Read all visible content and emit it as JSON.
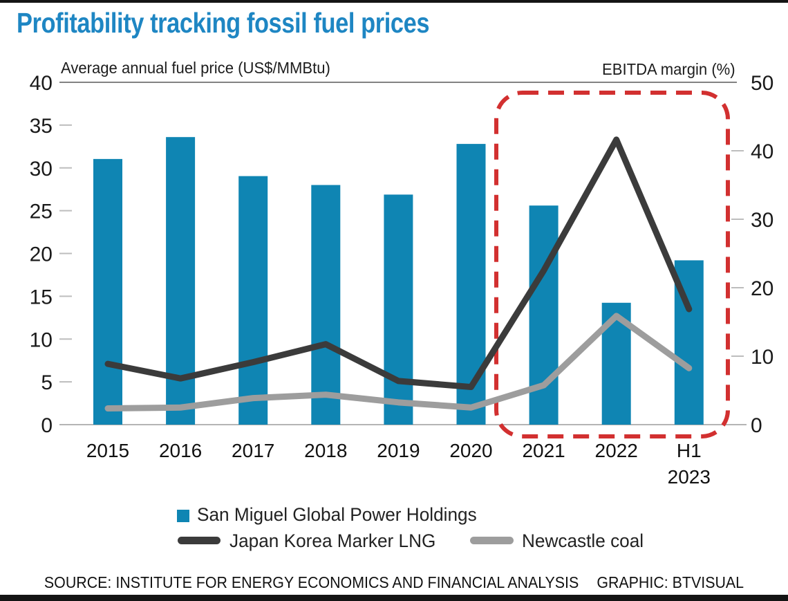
{
  "title": "Profitability tracking fossil fuel prices",
  "colors": {
    "title_accent": "#1e86c3",
    "bar": "#0f85b3",
    "lng_line": "#3b3b3b",
    "coal_line": "#9d9d9d",
    "highlight_box": "#d23030",
    "axis_line": "#828282",
    "tick": "#bdbdbd",
    "text": "#1a1a1a"
  },
  "chart_data": {
    "type": "bar-line-combo",
    "title": "Profitability tracking fossil fuel prices",
    "categories": [
      "2015",
      "2016",
      "2017",
      "2018",
      "2019",
      "2020",
      "2021",
      "2022",
      "H1 2023"
    ],
    "left_axis": {
      "title": "Average annual fuel price (US$/MMBtu)",
      "min": 0,
      "max": 40,
      "tick_step": 5,
      "ticks": [
        0,
        5,
        10,
        15,
        20,
        25,
        30,
        35,
        40
      ]
    },
    "right_axis": {
      "title": "EBITDA margin (%)",
      "min": 0,
      "max": 50,
      "tick_step": 10,
      "ticks": [
        0,
        10,
        20,
        30,
        40,
        50
      ]
    },
    "series": [
      {
        "name": "San Miguel Global Power Holdings",
        "type": "bar",
        "axis": "right",
        "color": "#0f85b3",
        "values": [
          38.8,
          42.0,
          36.3,
          35.0,
          33.6,
          41.0,
          32.0,
          17.8,
          24.0
        ]
      },
      {
        "name": "Japan Korea Marker LNG",
        "type": "line",
        "axis": "left",
        "color": "#3b3b3b",
        "values": [
          7.1,
          5.4,
          7.3,
          9.4,
          5.1,
          4.4,
          18.0,
          33.3,
          13.5
        ]
      },
      {
        "name": "Newcastle coal",
        "type": "line",
        "axis": "left",
        "color": "#9d9d9d",
        "values": [
          1.9,
          2.0,
          3.1,
          3.5,
          2.6,
          2.0,
          4.6,
          12.7,
          6.6
        ]
      }
    ],
    "highlight": {
      "style": "dashed-rounded-box",
      "categories": [
        "2021",
        "2022",
        "H1 2023"
      ],
      "color": "#d23030"
    },
    "grid": "ticks-only",
    "legend_position": "bottom"
  },
  "footer": {
    "source": "SOURCE: INSTITUTE FOR ENERGY ECONOMICS AND FINANCIAL ANALYSIS",
    "graphic": "GRAPHIC: BTVISUAL"
  }
}
